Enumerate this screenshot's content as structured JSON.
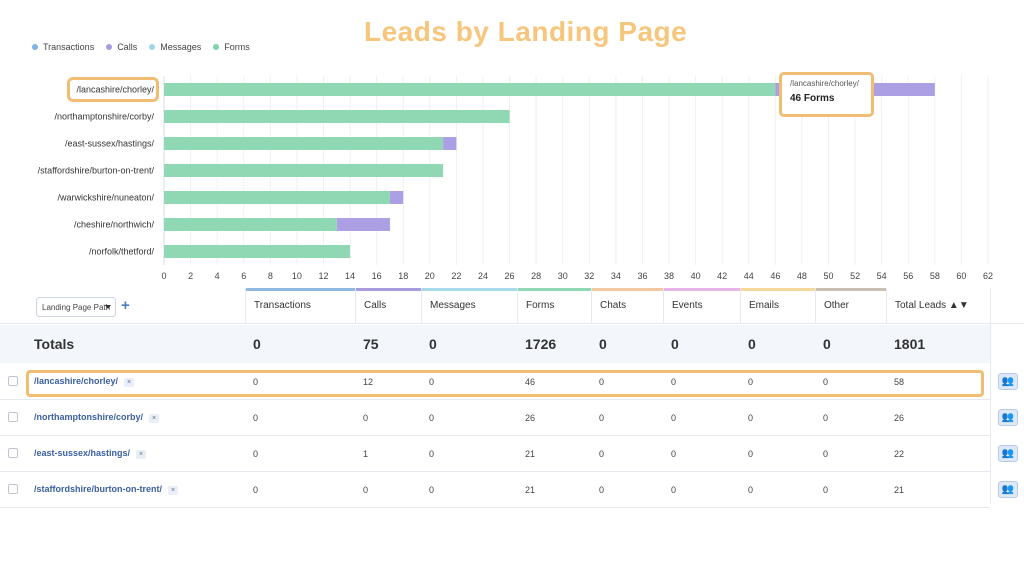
{
  "headline": "Leads by Landing Page",
  "legend": [
    {
      "label": "Transactions",
      "color": "#7fb2e5"
    },
    {
      "label": "Calls",
      "color": "#a89be0"
    },
    {
      "label": "Messages",
      "color": "#9fd6ea"
    },
    {
      "label": "Forms",
      "color": "#7ed3ab"
    }
  ],
  "tooltip": {
    "label": "/lancashire/chorley/",
    "value": "46 Forms"
  },
  "chart_data": {
    "type": "bar",
    "orientation": "horizontal",
    "stacked": true,
    "categories": [
      "/lancashire/chorley/",
      "/northamptonshire/corby/",
      "/east-sussex/hastings/",
      "/staffordshire/burton-on-trent/",
      "/warwickshire/nuneaton/",
      "/cheshire/northwich/",
      "/norfolk/thetford/"
    ],
    "series": [
      {
        "name": "Forms",
        "color": "#8fd8b3",
        "values": [
          46,
          26,
          21,
          21,
          17,
          13,
          14
        ]
      },
      {
        "name": "Calls",
        "color": "#ac9fe3",
        "values": [
          12,
          0,
          1,
          0,
          1,
          4,
          0
        ]
      }
    ],
    "xticks": [
      0,
      2,
      4,
      6,
      8,
      10,
      12,
      14,
      16,
      18,
      20,
      22,
      24,
      26,
      28,
      30,
      32,
      34,
      36,
      38,
      40,
      42,
      44,
      46,
      48,
      50,
      52,
      54,
      56,
      58,
      60,
      62
    ],
    "xlim": [
      0,
      62
    ],
    "grid": true,
    "legend_position": "top-left"
  },
  "table": {
    "selector_label": "Landing Page Path",
    "add_label": "+",
    "columns": [
      {
        "label": "Transactions",
        "color": "#8fb9e3"
      },
      {
        "label": "Calls",
        "color": "#a89be0"
      },
      {
        "label": "Messages",
        "color": "#a6d9ea"
      },
      {
        "label": "Forms",
        "color": "#8fd8b3"
      },
      {
        "label": "Chats",
        "color": "#f3c7a2"
      },
      {
        "label": "Events",
        "color": "#e7b6e6"
      },
      {
        "label": "Emails",
        "color": "#f5d99a"
      },
      {
        "label": "Other",
        "color": "#c9bfb0"
      },
      {
        "label": "Total Leads ▲▼",
        "color": ""
      }
    ],
    "totals": {
      "label": "Totals",
      "values": [
        "0",
        "75",
        "0",
        "1726",
        "0",
        "0",
        "0",
        "0",
        "1801"
      ]
    },
    "rows": [
      {
        "path": "/lancashire/chorley/",
        "values": [
          "0",
          "12",
          "0",
          "46",
          "0",
          "0",
          "0",
          "0",
          "58"
        ]
      },
      {
        "path": "/northamptonshire/corby/",
        "values": [
          "0",
          "0",
          "0",
          "26",
          "0",
          "0",
          "0",
          "0",
          "26"
        ]
      },
      {
        "path": "/east-sussex/hastings/",
        "values": [
          "0",
          "1",
          "0",
          "21",
          "0",
          "0",
          "0",
          "0",
          "22"
        ]
      },
      {
        "path": "/staffordshire/burton-on-trent/",
        "values": [
          "0",
          "0",
          "0",
          "21",
          "0",
          "0",
          "0",
          "0",
          "21"
        ]
      }
    ],
    "remove_chip": "×"
  }
}
